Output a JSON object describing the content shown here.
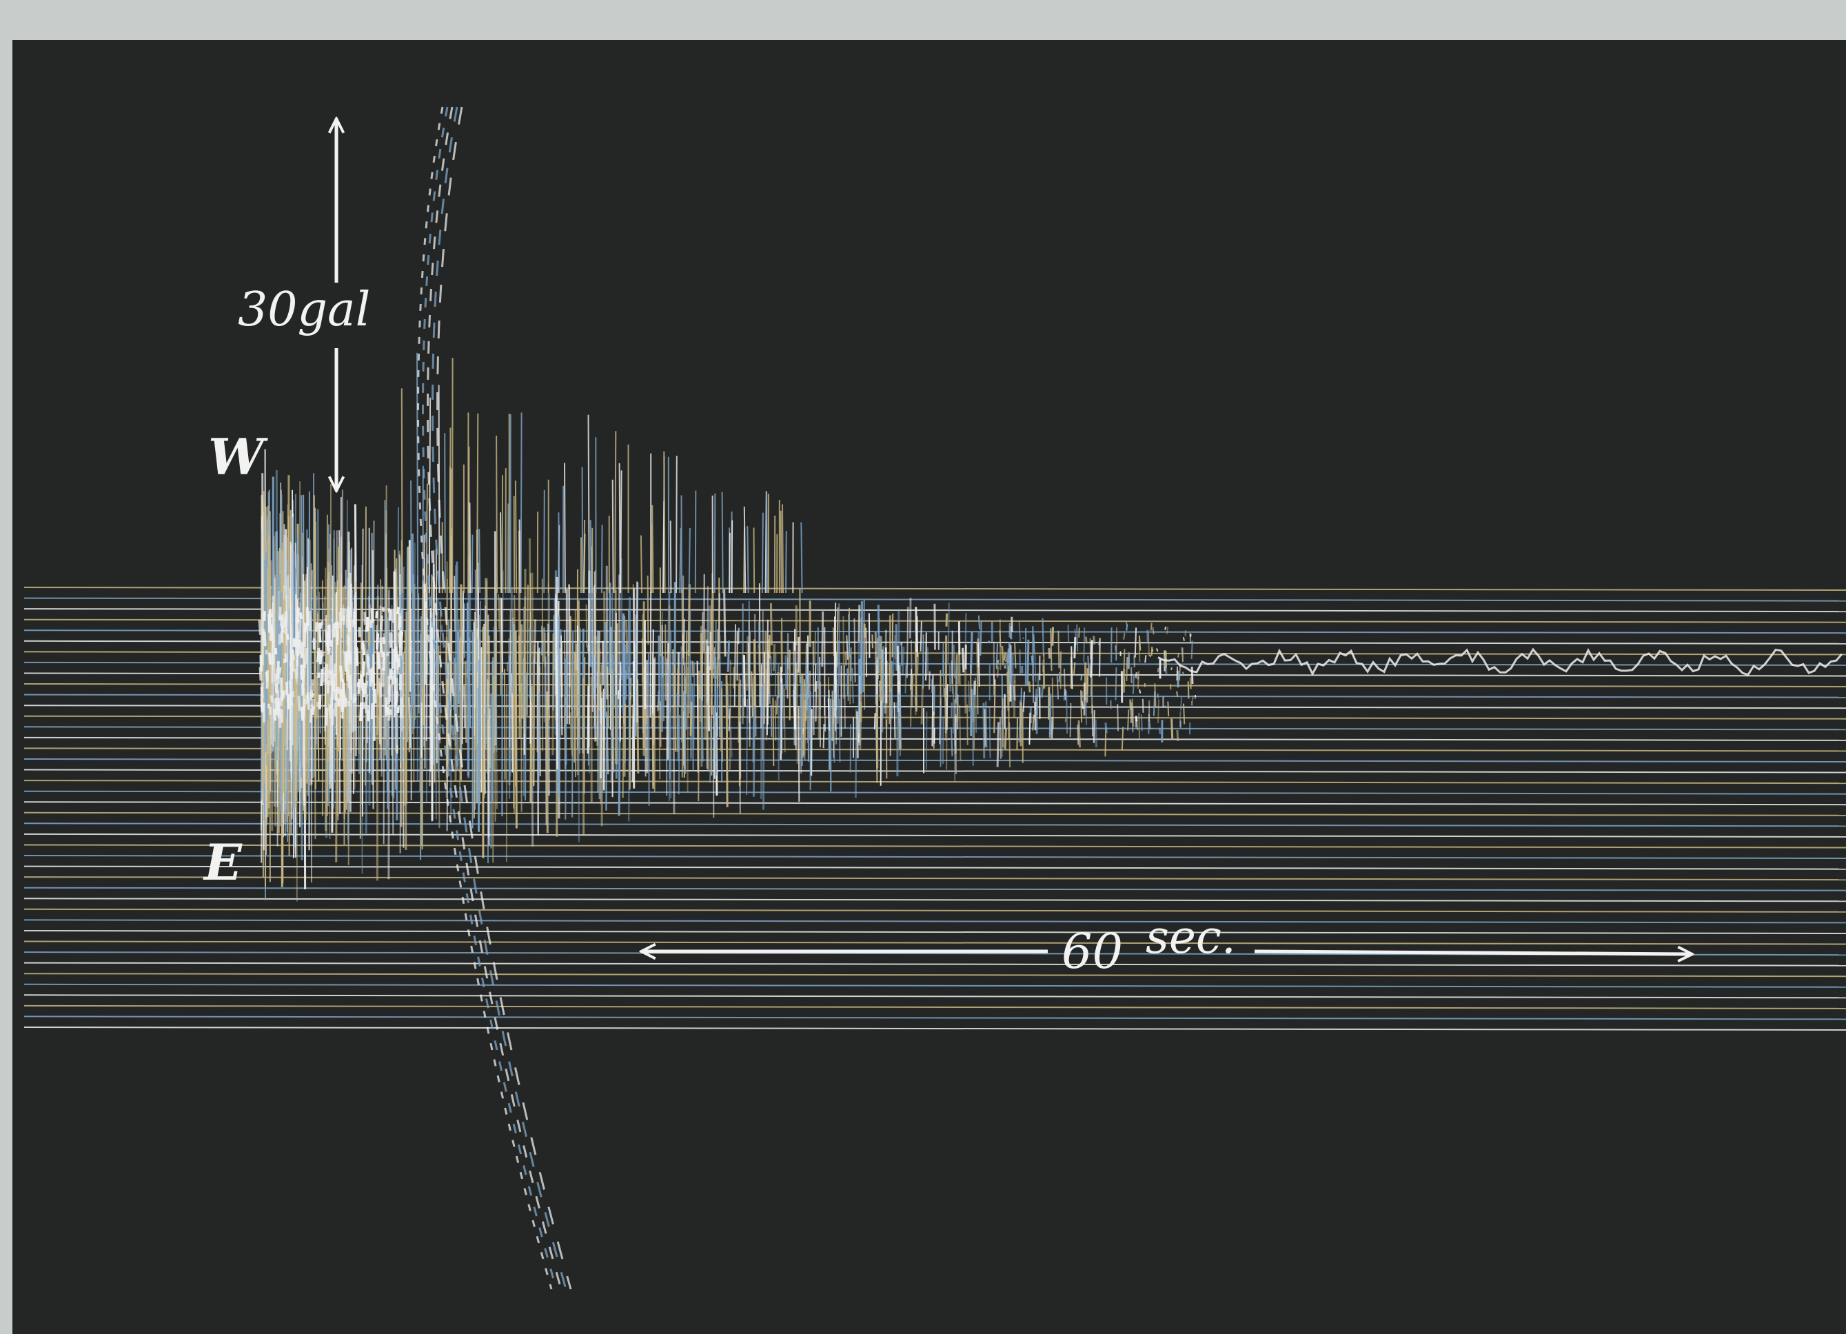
{
  "figure": {
    "amplitude_scale_label": "30gal",
    "upper_direction_label": "W",
    "lower_direction_label": "E",
    "time_scale_value": "60",
    "time_scale_unit": "sec."
  },
  "colors": {
    "paper_border": "#c8ccca",
    "record_background": "#232625",
    "trace_yellow": "#c9b784",
    "trace_blue": "#7fa6c8",
    "trace_white": "#eeeeee",
    "annotation_white": "#f2f2f0"
  }
}
